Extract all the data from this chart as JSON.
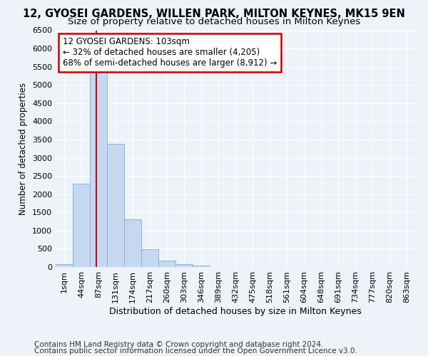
{
  "title1": "12, GYOSEI GARDENS, WILLEN PARK, MILTON KEYNES, MK15 9EN",
  "title2": "Size of property relative to detached houses in Milton Keynes",
  "xlabel": "Distribution of detached houses by size in Milton Keynes",
  "ylabel": "Number of detached properties",
  "footer1": "Contains HM Land Registry data © Crown copyright and database right 2024.",
  "footer2": "Contains public sector information licensed under the Open Government Licence v3.0.",
  "categories": [
    "1sqm",
    "44sqm",
    "87sqm",
    "131sqm",
    "174sqm",
    "217sqm",
    "260sqm",
    "303sqm",
    "346sqm",
    "389sqm",
    "432sqm",
    "475sqm",
    "518sqm",
    "561sqm",
    "604sqm",
    "648sqm",
    "691sqm",
    "734sqm",
    "777sqm",
    "820sqm",
    "863sqm"
  ],
  "values": [
    70,
    2280,
    5420,
    3380,
    1310,
    490,
    185,
    80,
    40,
    0,
    0,
    0,
    0,
    0,
    0,
    0,
    0,
    0,
    0,
    0,
    0
  ],
  "bar_color": "#c5d8f0",
  "bar_edge_color": "#7aaed6",
  "annotation_box_text": "12 GYOSEI GARDENS: 103sqm\n← 32% of detached houses are smaller (4,205)\n68% of semi-detached houses are larger (8,912) →",
  "annotation_box_color": "white",
  "annotation_box_edge_color": "#cc0000",
  "annotation_line_color": "#cc0000",
  "ylim": [
    0,
    6500
  ],
  "yticks": [
    0,
    500,
    1000,
    1500,
    2000,
    2500,
    3000,
    3500,
    4000,
    4500,
    5000,
    5500,
    6000,
    6500
  ],
  "background_color": "#eef2f9",
  "grid_color": "white",
  "title1_fontsize": 10.5,
  "title2_fontsize": 9.5,
  "xlabel_fontsize": 9,
  "ylabel_fontsize": 8.5,
  "tick_fontsize": 8,
  "annot_fontsize": 8.5,
  "footer_fontsize": 7.5
}
